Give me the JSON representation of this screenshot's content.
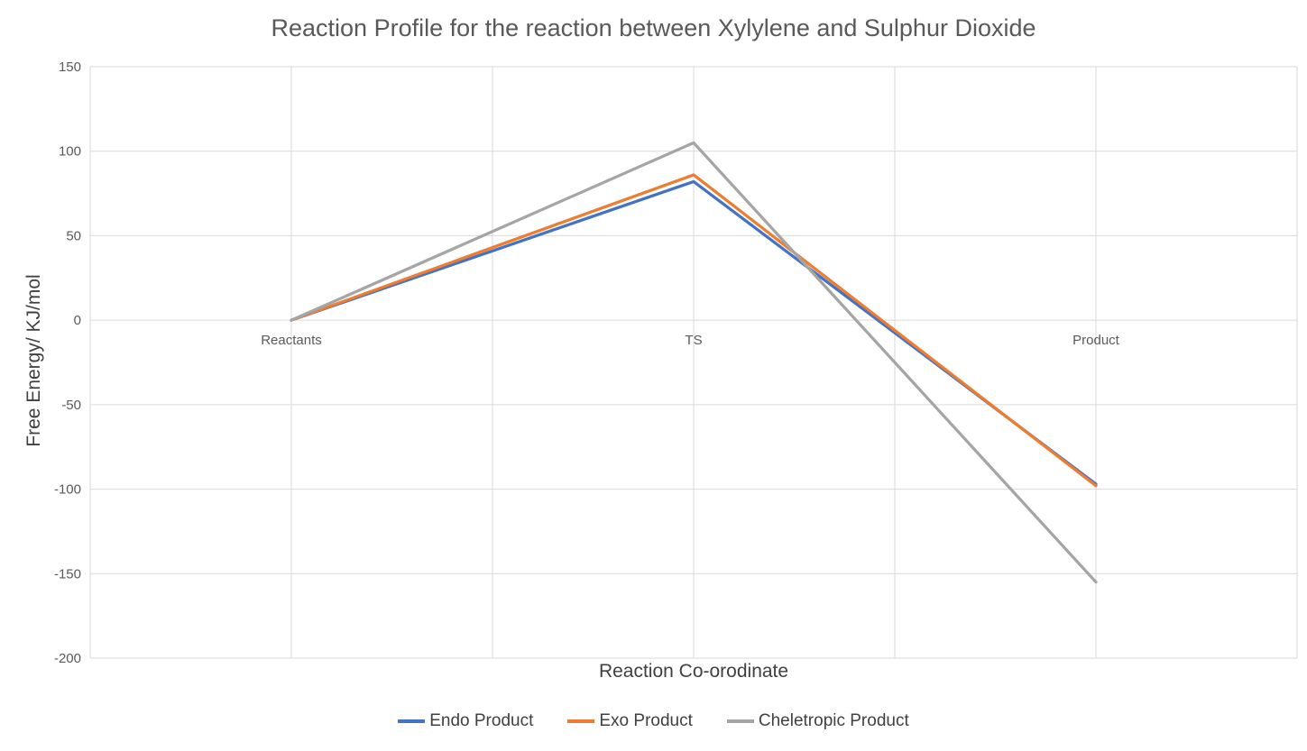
{
  "chart_data": {
    "type": "line",
    "title": "Reaction Profile for the reaction between Xylylene and Sulphur Dioxide",
    "xlabel": "Reaction Co-orodinate",
    "ylabel": "Free Energy/ KJ/mol",
    "categories": [
      "Reactants",
      "TS",
      "Product"
    ],
    "series": [
      {
        "name": "Endo Product",
        "color": "#4472C4",
        "values": [
          0,
          82,
          -97
        ]
      },
      {
        "name": "Exo Product",
        "color": "#ED7D31",
        "values": [
          0,
          86,
          -98
        ]
      },
      {
        "name": "Cheletropic Product",
        "color": "#A5A5A5",
        "values": [
          0,
          105,
          -155
        ]
      }
    ],
    "ylim": [
      -200,
      150
    ],
    "ytick_step": 50,
    "yticks": [
      150,
      100,
      50,
      0,
      -50,
      -100,
      -150,
      -200
    ],
    "grid": true,
    "legend_position": "bottom",
    "colors": {
      "grid": "#D9D9D9",
      "tick_text": "#595959",
      "title_text": "#595959"
    }
  }
}
